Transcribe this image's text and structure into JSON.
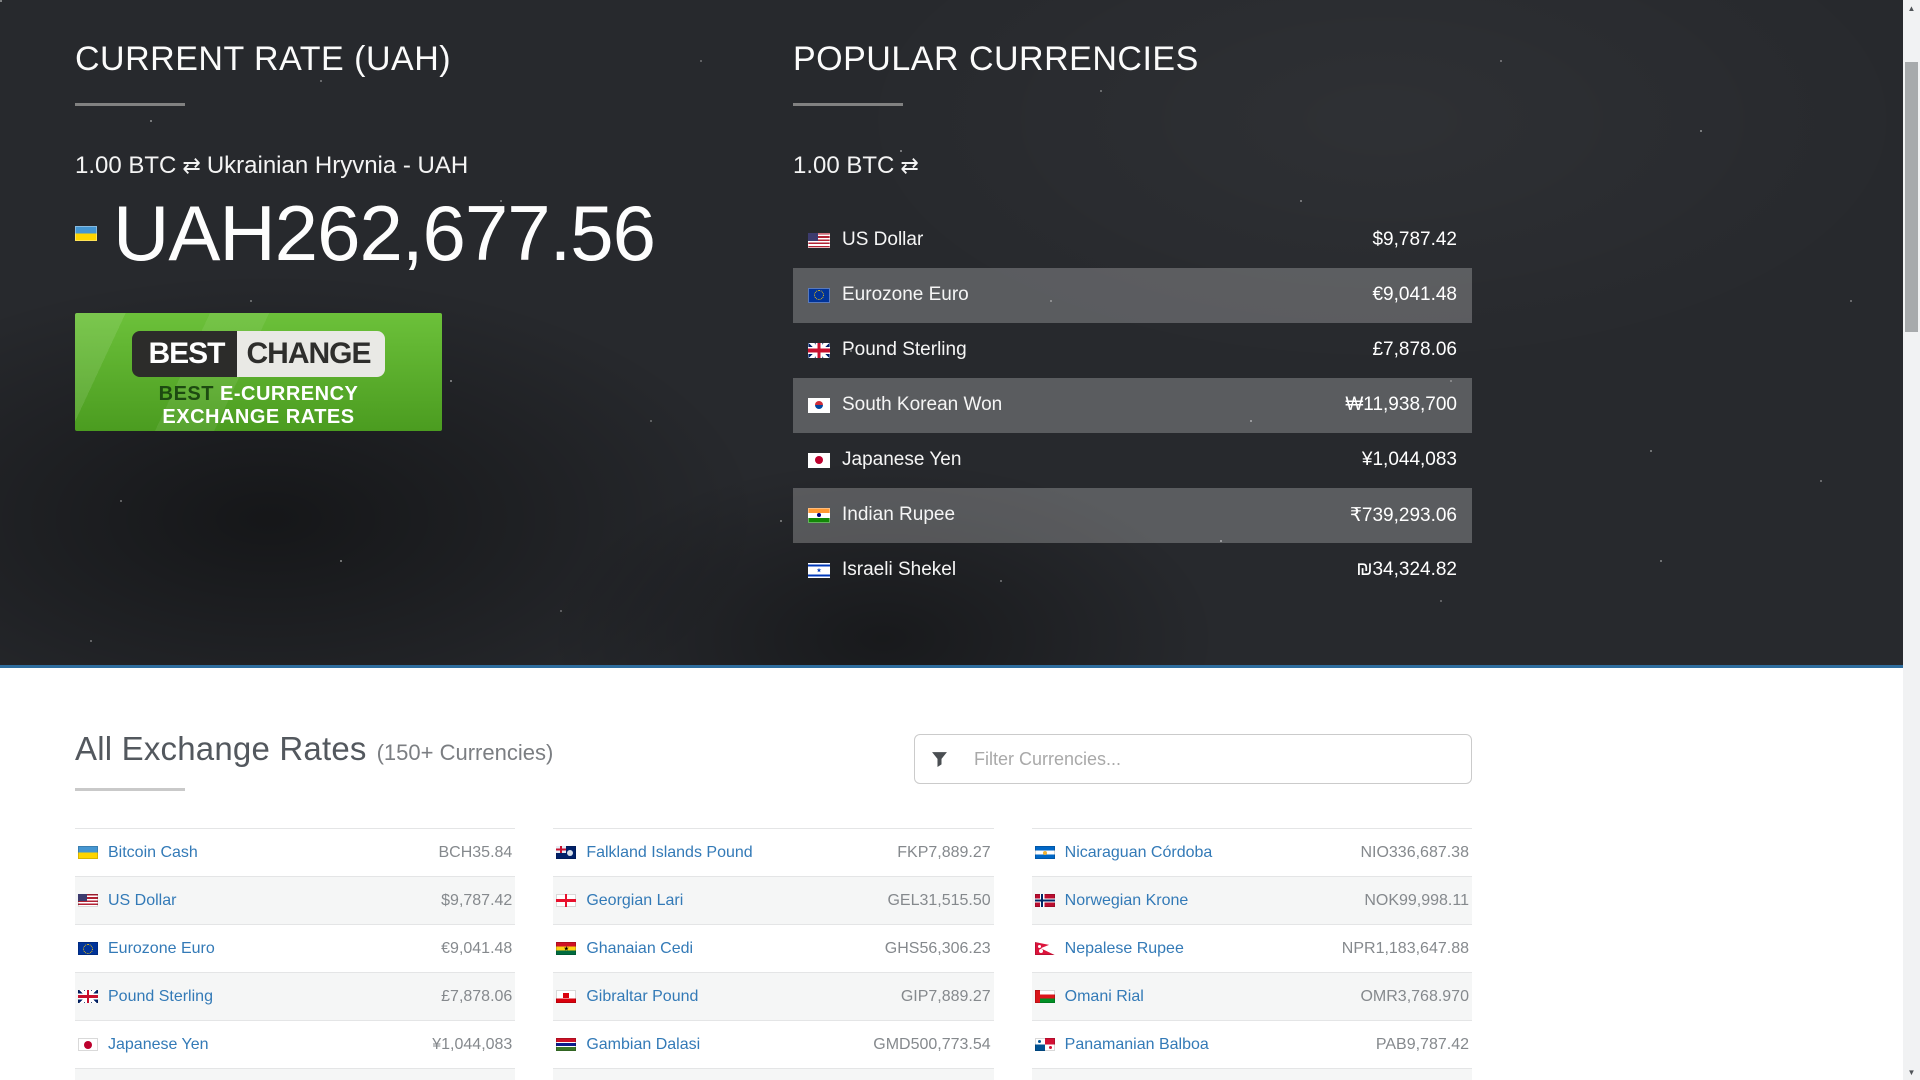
{
  "icons": {
    "swap": "⇄",
    "scroll_up": "▲",
    "scroll_down": "▼",
    "filter": "funnel"
  },
  "colors": {
    "hero_bg": "#27292d",
    "divider_blue": "#2e6d9e",
    "link_blue": "#337ab7",
    "banner_green": "#5bb02d",
    "row_shade_dark": "rgba(255,255,255,0.24)",
    "row_shade_light": "#f5f6f6"
  },
  "hero": {
    "left": {
      "title": "CURRENT RATE (UAH)",
      "pair_amount": "1.00 BTC",
      "pair_target": "Ukrainian Hryvnia - UAH",
      "rate_flag": "ua",
      "rate_value": "UAH262,677.56",
      "banner": {
        "brand_left": "BEST",
        "brand_right": "CHANGE",
        "tagline_emphasis": "BEST",
        "tagline_rest": " E-CURRENCY",
        "tagline_line2": "EXCHANGE RATES"
      }
    },
    "right": {
      "title": "POPULAR CURRENCIES",
      "pair_amount": "1.00 BTC",
      "rows": [
        {
          "flag": "us",
          "name": "US Dollar",
          "value": "$9,787.42"
        },
        {
          "flag": "eu",
          "name": "Eurozone Euro",
          "value": "€9,041.48"
        },
        {
          "flag": "gb",
          "name": "Pound Sterling",
          "value": "£7,878.06"
        },
        {
          "flag": "kr",
          "name": "South Korean Won",
          "value": "₩11,938,700"
        },
        {
          "flag": "jp",
          "name": "Japanese Yen",
          "value": "¥1,044,083"
        },
        {
          "flag": "in",
          "name": "Indian Rupee",
          "value": "₹739,293.06"
        },
        {
          "flag": "il",
          "name": "Israeli Shekel",
          "value": "₪34,324.82"
        }
      ]
    }
  },
  "rates_section": {
    "title": "All Exchange Rates",
    "subtitle": "(150+ Currencies)",
    "filter_placeholder": "Filter Currencies...",
    "columns": [
      [
        {
          "flag": "ua",
          "name": "Bitcoin Cash",
          "value": "BCH35.84"
        },
        {
          "flag": "us",
          "name": "US Dollar",
          "value": "$9,787.42"
        },
        {
          "flag": "eu",
          "name": "Eurozone Euro",
          "value": "€9,041.48"
        },
        {
          "flag": "gb",
          "name": "Pound Sterling",
          "value": "£7,878.06"
        },
        {
          "flag": "jp",
          "name": "Japanese Yen",
          "value": "¥1,044,083"
        }
      ],
      [
        {
          "flag": "fk",
          "name": "Falkland Islands Pound",
          "value": "FKP7,889.27"
        },
        {
          "flag": "ge",
          "name": "Georgian Lari",
          "value": "GEL31,515.50"
        },
        {
          "flag": "gh",
          "name": "Ghanaian Cedi",
          "value": "GHS56,306.23"
        },
        {
          "flag": "gi",
          "name": "Gibraltar Pound",
          "value": "GIP7,889.27"
        },
        {
          "flag": "gm",
          "name": "Gambian Dalasi",
          "value": "GMD500,773.54"
        }
      ],
      [
        {
          "flag": "ni",
          "name": "Nicaraguan Córdoba",
          "value": "NIO336,687.38"
        },
        {
          "flag": "no",
          "name": "Norwegian Krone",
          "value": "NOK99,998.11"
        },
        {
          "flag": "np",
          "name": "Nepalese Rupee",
          "value": "NPR1,183,647.88"
        },
        {
          "flag": "om",
          "name": "Omani Rial",
          "value": "OMR3,768.970"
        },
        {
          "flag": "pa",
          "name": "Panamanian Balboa",
          "value": "PAB9,787.42"
        }
      ]
    ]
  }
}
